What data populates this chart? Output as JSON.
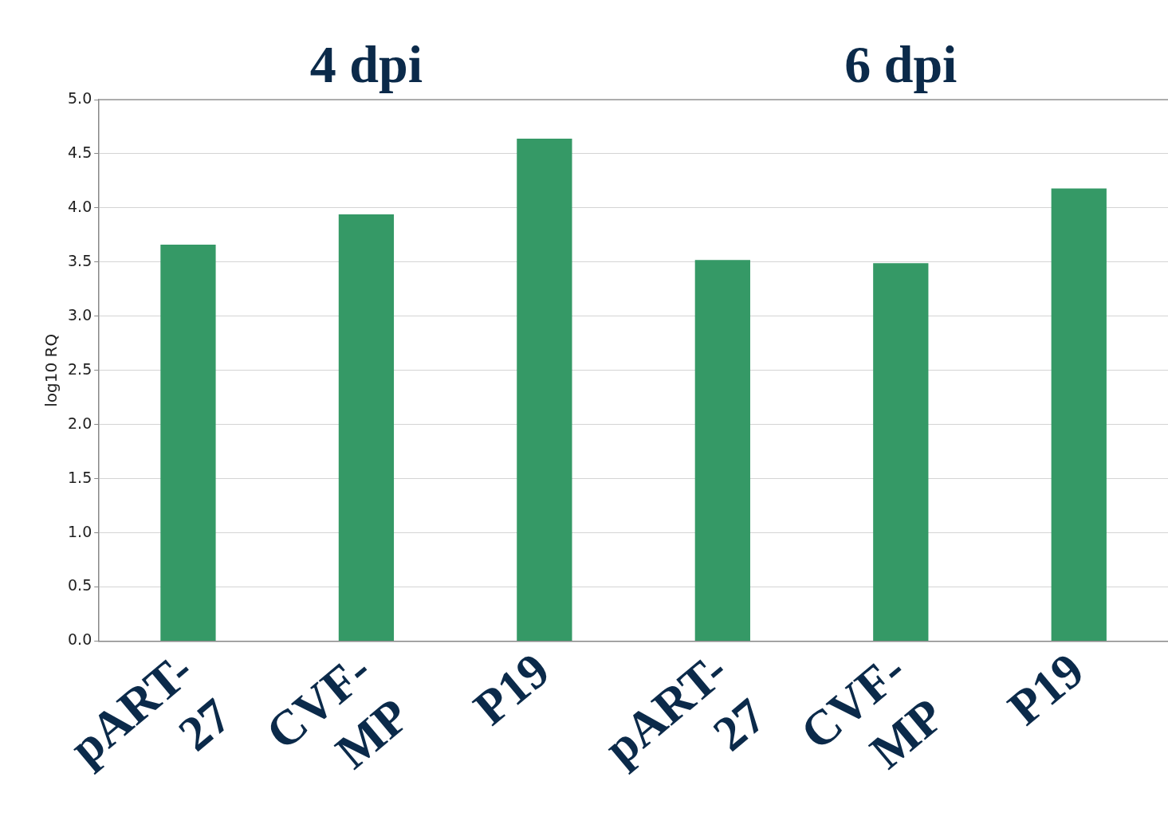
{
  "chart_data": {
    "type": "bar",
    "ylabel": "log10 RQ",
    "annotations": [
      "4 dpi",
      "6 dpi"
    ],
    "categories": [
      "pART-27",
      "CVF-MP",
      "P19",
      "pART-27",
      "CVF-MP",
      "P19"
    ],
    "values": [
      3.66,
      3.94,
      4.64,
      3.52,
      3.49,
      4.18
    ],
    "color": "#359966",
    "ylim": [
      0,
      5
    ],
    "yticks": [
      {
        "value": 0,
        "label": "0.0"
      },
      {
        "value": 0.5,
        "label": "0.5"
      },
      {
        "value": 1,
        "label": "1.0"
      },
      {
        "value": 1.5,
        "label": "1.5"
      },
      {
        "value": 2,
        "label": "2.0"
      },
      {
        "value": 2.5,
        "label": "2.5"
      },
      {
        "value": 3,
        "label": "3.0"
      },
      {
        "value": 3.5,
        "label": "3.5"
      },
      {
        "value": 4,
        "label": "4.0"
      },
      {
        "value": 4.5,
        "label": "4.5"
      },
      {
        "value": 5,
        "label": "5.0"
      }
    ],
    "grid": "y"
  }
}
